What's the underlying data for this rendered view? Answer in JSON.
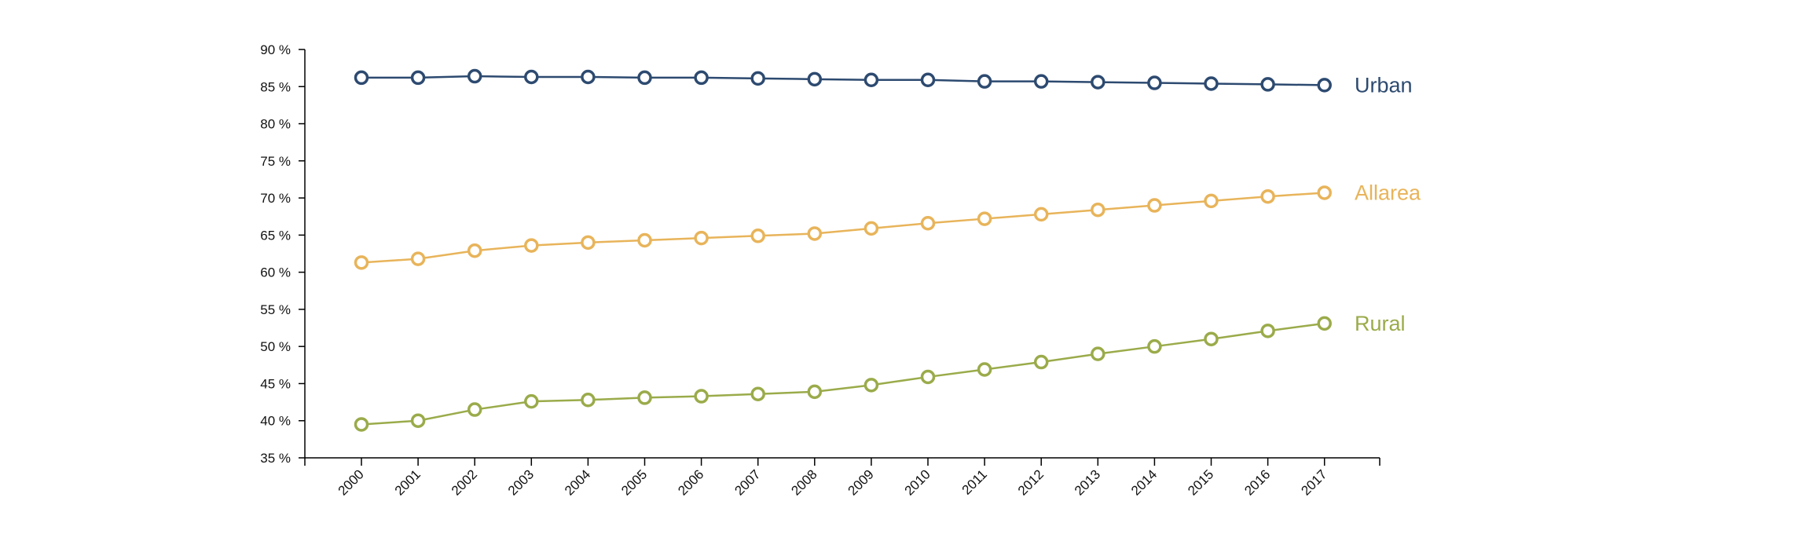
{
  "chart_data": {
    "type": "line",
    "title": "",
    "xlabel": "",
    "ylabel": "",
    "categories": [
      "2000",
      "2001",
      "2002",
      "2003",
      "2004",
      "2005",
      "2006",
      "2007",
      "2008",
      "2009",
      "2010",
      "2011",
      "2012",
      "2013",
      "2014",
      "2015",
      "2016",
      "2017"
    ],
    "ylim": [
      35,
      90
    ],
    "yticks": [
      35,
      40,
      45,
      50,
      55,
      60,
      65,
      70,
      75,
      80,
      85,
      90
    ],
    "ytick_suffix": " %",
    "grid": false,
    "legend": "inline labels at line ends (right)",
    "series": [
      {
        "name": "Urban",
        "color": "#2d4a70",
        "values": [
          86.2,
          86.2,
          86.4,
          86.3,
          86.3,
          86.2,
          86.2,
          86.1,
          86.0,
          85.9,
          85.9,
          85.7,
          85.7,
          85.6,
          85.5,
          85.4,
          85.3,
          85.2
        ]
      },
      {
        "name": "Allarea",
        "color": "#e8b45a",
        "values": [
          61.3,
          61.8,
          62.9,
          63.6,
          64.0,
          64.3,
          64.6,
          64.9,
          65.2,
          65.9,
          66.6,
          67.2,
          67.8,
          68.4,
          69.0,
          69.6,
          70.2,
          70.7
        ]
      },
      {
        "name": "Rural",
        "color": "#9aab4a",
        "values": [
          39.5,
          40.0,
          41.5,
          42.6,
          42.8,
          43.1,
          43.3,
          43.6,
          43.9,
          44.8,
          45.9,
          46.9,
          47.9,
          49.0,
          50.0,
          51.0,
          52.1,
          53.1
        ]
      }
    ]
  }
}
